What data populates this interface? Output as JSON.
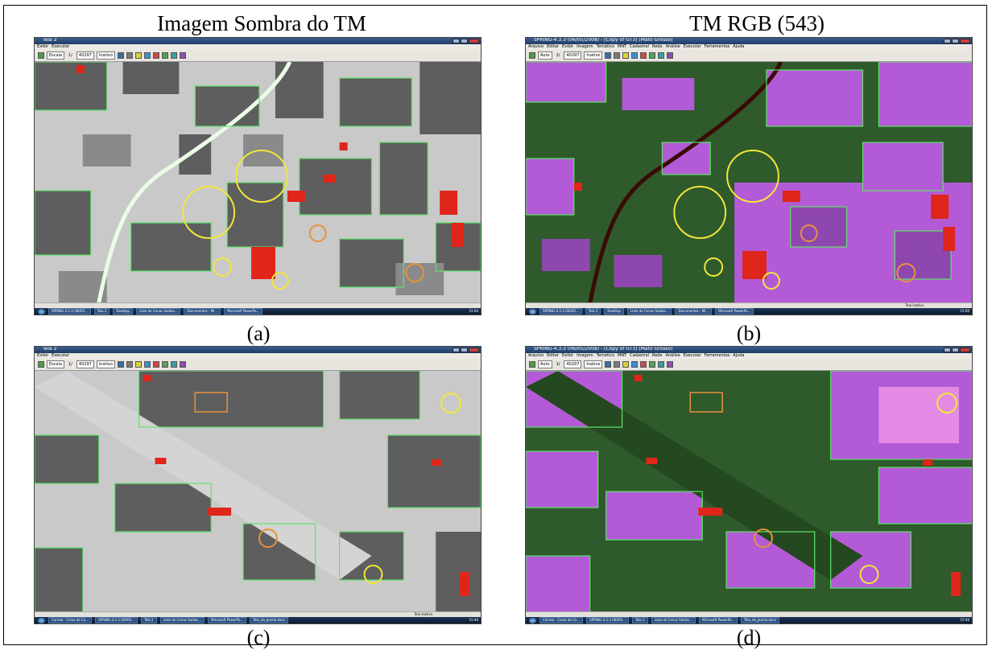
{
  "headings": {
    "a": "Imagem Sombra do TM",
    "b": "TM RGB (543)"
  },
  "captions": {
    "a": "(a)",
    "b": "(b)",
    "c": "(c)",
    "d": "(d)"
  },
  "panels": {
    "a": {
      "window_title": "Tela 2",
      "menus": [
        "Exibir",
        "Executar"
      ],
      "toolbar": {
        "zoom": "Escala",
        "scale_value": "1/",
        "scale_input": "40297",
        "mode": "Inativo"
      },
      "status_text": "",
      "taskbar": [
        "SPRING-4.3.3 (06/05...",
        "Tela 2",
        "Desktop",
        "Lista de Cenas Saídas...",
        "Documentos - Mi...",
        "Microsoft PowerPo..."
      ],
      "clock": "15:00"
    },
    "b": {
      "window_title": "SPRING-4.3.3 (06/05/2008) - [Copy of GT3] [Mato Grosso]",
      "menus": [
        "Arquivo",
        "Editar",
        "Exibir",
        "Imagem",
        "Temático",
        "MNT",
        "Cadastral",
        "Rede",
        "Análise",
        "Executar",
        "Ferramentas",
        "Ajuda"
      ],
      "toolbar": {
        "zoom": "Auto",
        "scale_value": "1/",
        "scale_input": "40297",
        "mode": "Inativo"
      },
      "status_text": "Tela Inativa",
      "taskbar": [
        "SPRING-4.3.3 (06/05...",
        "Tela 2",
        "Desktop",
        "Lista de Cenas Saídas...",
        "Documentos - Mi...",
        "Microsoft PowerPo..."
      ],
      "clock": "15:00"
    },
    "c": {
      "window_title": "Tela 2",
      "menus": [
        "Exibir",
        "Executar"
      ],
      "toolbar": {
        "zoom": "Escala",
        "scale_value": "1/",
        "scale_input": "40297",
        "mode": "Inativo"
      },
      "status_text": "Tela Inativa",
      "taskbar": [
        "Correio - Caixa de Ca...",
        "SPRING-4.3.3 (06/05...",
        "Tela 2",
        "Lista de Cenas Saídas...",
        "Microsoft PowerPo...",
        "Tela_da_Janela.docx"
      ],
      "clock": "15:40"
    },
    "d": {
      "window_title": "SPRING-4.3.3 (06/05/2008) - [Copy of GT3] [Mato Grosso]",
      "menus": [
        "Arquivo",
        "Editar",
        "Exibir",
        "Imagem",
        "Temático",
        "MNT",
        "Cadastral",
        "Rede",
        "Análise",
        "Executar",
        "Ferramentas",
        "Ajuda"
      ],
      "toolbar": {
        "zoom": "Auto",
        "scale_value": "1/",
        "scale_input": "40297",
        "mode": "Inativo"
      },
      "status_text": "",
      "taskbar": [
        "Correio - Caixa de Ca...",
        "SPRING-4.3.3 (06/05...",
        "Tela 2",
        "Lista de Cenas Saídas...",
        "Microsoft PowerPo...",
        "Tela_da_Janela.docx"
      ],
      "clock": "15:40"
    }
  },
  "colors": {
    "shadow_bg": "#c9c9c9",
    "shadow_dark": "#5e5e5e",
    "rgb_forest": "#2f5a2c",
    "rgb_pasture": "#b35bd6",
    "segment_outline": "#5fe36a",
    "burn_red": "#e0251b",
    "river_shadow": "#eafbe6",
    "river_rgb": "#3a0b05",
    "marker_yellow": "#f2e63a",
    "marker_orange": "#e8923c"
  }
}
